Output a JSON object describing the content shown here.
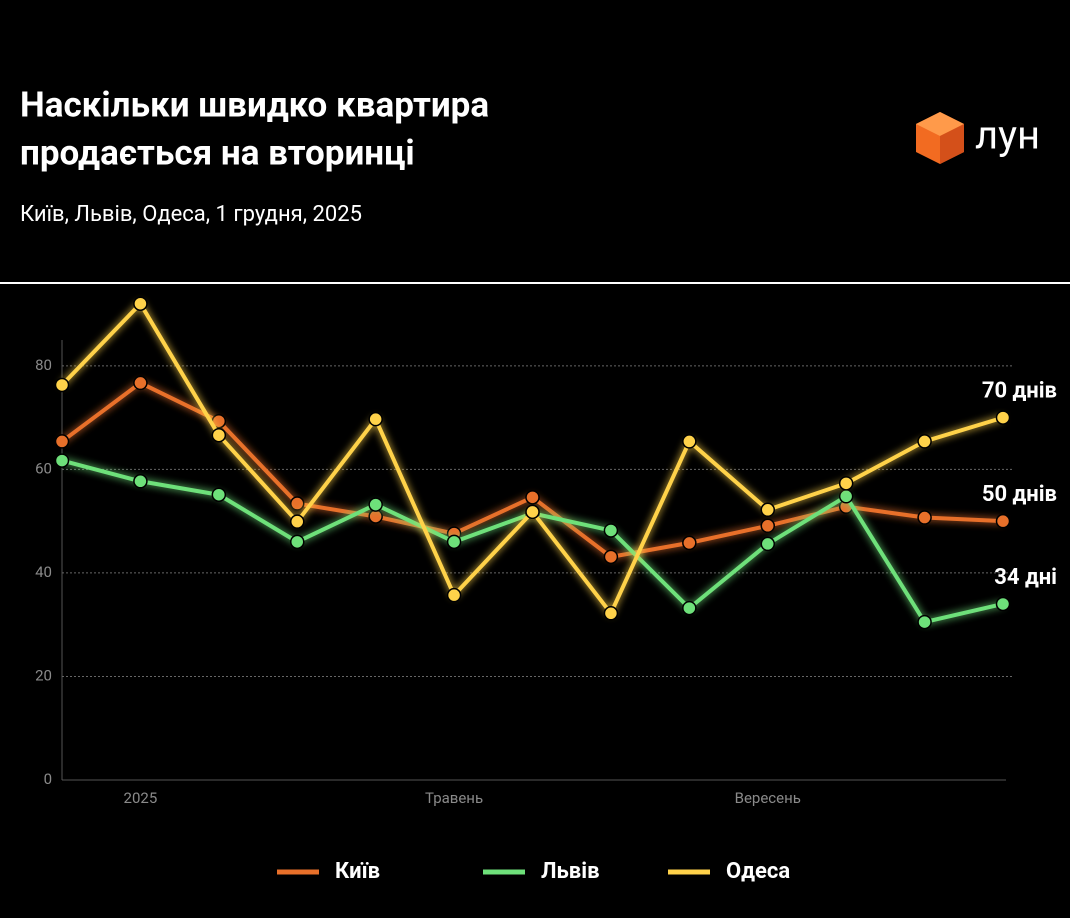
{
  "brand": "лун",
  "chart_data": {
    "type": "line",
    "title": [
      "Наскільки швидко квартира",
      "продається на вторинці"
    ],
    "subtitle": "Київ, Львів, Одеса, 1 грудня, 2025",
    "categories": [
      null,
      "2025",
      null,
      null,
      null,
      "Травень",
      null,
      null,
      null,
      "Вересень",
      null,
      null,
      null
    ],
    "ylim": [
      0,
      96
    ],
    "yticks": [
      0,
      20,
      40,
      60,
      80
    ],
    "grid": true,
    "legend": "bottom",
    "series": [
      {
        "name": "Київ",
        "color": "#e8702a",
        "values": [
          65.4,
          76.7,
          69.3,
          53.4,
          50.9,
          47.6,
          54.6,
          43.1,
          45.8,
          49.1,
          52.8,
          50.7,
          50
        ],
        "value_labels": [
          null,
          null,
          null,
          null,
          null,
          null,
          null,
          null,
          null,
          null,
          null,
          null,
          "50 днів"
        ]
      },
      {
        "name": "Львів",
        "color": "#6ee07a",
        "values": [
          61.7,
          57.7,
          55.1,
          46,
          53.2,
          46,
          51.5,
          48.2,
          33.2,
          45.6,
          54.8,
          30.5,
          34
        ],
        "value_labels": [
          null,
          null,
          null,
          null,
          null,
          null,
          null,
          null,
          null,
          null,
          null,
          null,
          "34 дні"
        ]
      },
      {
        "name": "Одеса",
        "color": "#ffd24a",
        "values": [
          76.3,
          92,
          66.6,
          49.9,
          69.7,
          35.7,
          51.8,
          32.2,
          65.4,
          52.2,
          57.3,
          65.4,
          70
        ],
        "value_labels": [
          null,
          null,
          null,
          null,
          null,
          null,
          null,
          null,
          null,
          null,
          null,
          null,
          "70 днів"
        ]
      }
    ]
  }
}
